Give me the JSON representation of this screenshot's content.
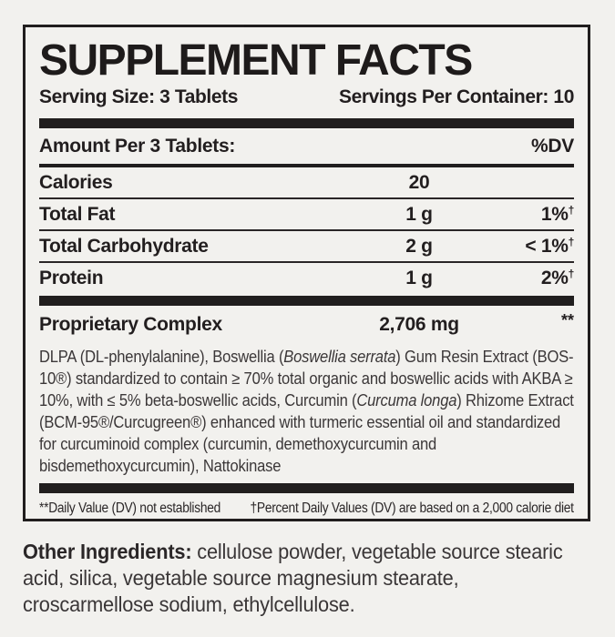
{
  "colors": {
    "background": "#f2f1ee",
    "text": "#221e1f",
    "paragraph_text": "#3b3738",
    "rule": "#211e1e"
  },
  "panel": {
    "title": "SUPPLEMENT FACTS",
    "serving_size": "Serving Size: 3 Tablets",
    "servings_per_container": "Servings Per Container: 10",
    "amount_header": "Amount Per 3 Tablets:",
    "dv_header": "%DV",
    "rows": [
      {
        "name": "Calories",
        "amount": "20",
        "dv": "",
        "dv_note": ""
      },
      {
        "name": "Total Fat",
        "amount": "1 g",
        "dv": "1%",
        "dv_note": "†"
      },
      {
        "name": "Total Carbohydrate",
        "amount": "2 g",
        "dv": "< 1%",
        "dv_note": "†"
      },
      {
        "name": "Protein",
        "amount": "1 g",
        "dv": "2%",
        "dv_note": "†"
      }
    ],
    "complex": {
      "name": "Proprietary Complex",
      "amount": "2,706 mg",
      "dv_note": "**",
      "description_segments": [
        {
          "text": "DLPA (DL-phenylalanine), Boswellia (",
          "style": "regular"
        },
        {
          "text": "Boswellia serrata",
          "style": "italic"
        },
        {
          "text": ") Gum Resin Extract (BOS-10®) standardized to contain ≥ 70% total organic and boswellic acids with AKBA ≥ 10%, with ≤ 5% beta-boswellic acids, Curcumin (",
          "style": "regular"
        },
        {
          "text": "Curcuma longa",
          "style": "italic"
        },
        {
          "text": ") Rhizome Extract (BCM-95®/Curcugreen®) enhanced with turmeric essential oil and standardized for curcuminoid complex (curcumin, demethoxycurcumin and bisdemethoxycurcumin), Nattokinase",
          "style": "regular"
        }
      ]
    },
    "footnotes": {
      "dv_not_established": "**Daily Value (DV) not established",
      "percent_dv_basis": "†Percent Daily Values (DV) are based on a 2,000 calorie diet"
    }
  },
  "other_ingredients": {
    "label": "Other Ingredients:",
    "text": " cellulose powder, vegetable source stearic acid, silica, vegetable source magnesium stearate, croscarmellose sodium, ethylcellulose."
  }
}
